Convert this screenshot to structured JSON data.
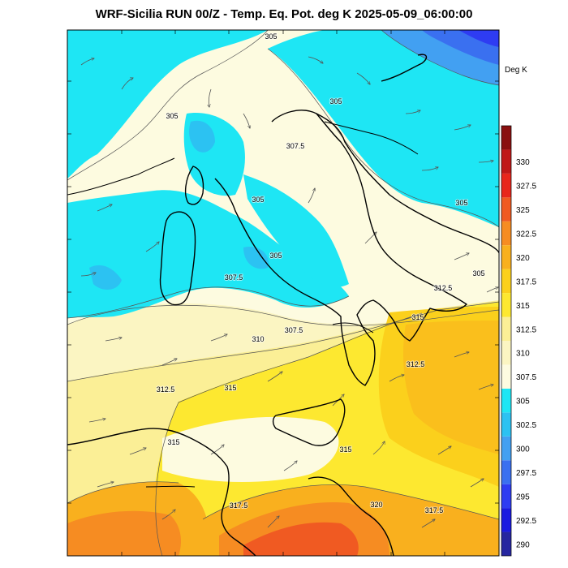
{
  "title": "WRF-Sicilia RUN 00/Z - Temp. Eq. Pot. deg K 2025-05-09_06:00:00",
  "colorbar": {
    "unit": "Deg K",
    "levels": [
      {
        "label": "290",
        "color": "#2626a0"
      },
      {
        "label": "292.5",
        "color": "#1a1ae0"
      },
      {
        "label": "295",
        "color": "#2e3cf2"
      },
      {
        "label": "297.5",
        "color": "#3a70f0"
      },
      {
        "label": "300",
        "color": "#42a0f2"
      },
      {
        "label": "302.5",
        "color": "#2cc2f2"
      },
      {
        "label": "305",
        "color": "#1ee6f4"
      },
      {
        "label": "307.5",
        "color": "#fdfbe0"
      },
      {
        "label": "310",
        "color": "#fbf5c2"
      },
      {
        "label": "312.5",
        "color": "#fbef96"
      },
      {
        "label": "315",
        "color": "#fde830"
      },
      {
        "label": "317.5",
        "color": "#fbd01c"
      },
      {
        "label": "320",
        "color": "#f9b01e"
      },
      {
        "label": "322.5",
        "color": "#f68c22"
      },
      {
        "label": "325",
        "color": "#f05a22"
      },
      {
        "label": "327.5",
        "color": "#e8261c"
      },
      {
        "label": "330",
        "color": "#c01818"
      },
      {
        "label": "",
        "color": "#8a1010"
      }
    ]
  },
  "contour_labels": [
    {
      "text": "305"
    },
    {
      "text": "305"
    },
    {
      "text": "305"
    },
    {
      "text": "307.5"
    },
    {
      "text": "305"
    },
    {
      "text": "305"
    },
    {
      "text": "305"
    },
    {
      "text": "305"
    },
    {
      "text": "307.5"
    },
    {
      "text": "312.5"
    },
    {
      "text": "315"
    },
    {
      "text": "307.5"
    },
    {
      "text": "310"
    },
    {
      "text": "312.5"
    },
    {
      "text": "315"
    },
    {
      "text": "312.5"
    },
    {
      "text": "315"
    },
    {
      "text": "315"
    },
    {
      "text": "317.5"
    },
    {
      "text": "320"
    },
    {
      "text": "317.5"
    }
  ]
}
